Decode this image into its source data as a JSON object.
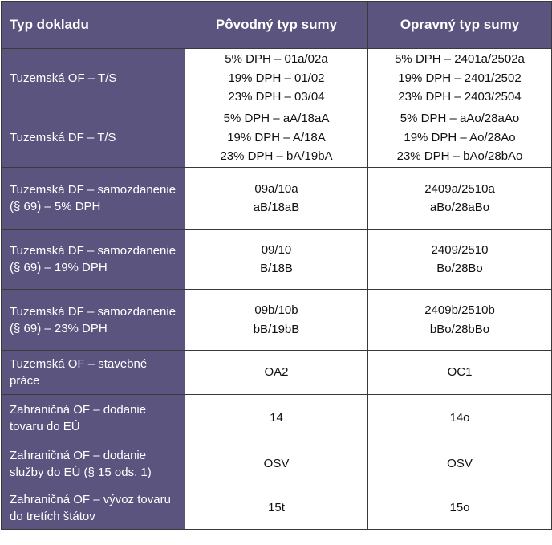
{
  "headers": [
    "Typ dokladu",
    "Pôvodný typ sumy",
    "Opravný typ sumy"
  ],
  "rows": [
    {
      "label": "Tuzemská OF – T/S",
      "original": [
        "5% DPH – 01a/02a",
        "19% DPH – 01/02",
        "23% DPH – 03/04"
      ],
      "corrective": [
        "5% DPH – 2401a/2502a",
        "19% DPH – 2401/2502",
        "23% DPH – 2403/2504"
      ]
    },
    {
      "label": "Tuzemská DF – T/S",
      "original": [
        "5% DPH – aA/18aA",
        "19% DPH – A/18A",
        "23% DPH – bA/19bA"
      ],
      "corrective": [
        "5% DPH – aAo/28aAo",
        "19% DPH – Ao/28Ao",
        "23% DPH – bAo/28bAo"
      ]
    },
    {
      "label": "Tuzemská DF – samozdanenie (§ 69) – 5% DPH",
      "original": [
        "09a/10a",
        "aB/18aB"
      ],
      "corrective": [
        "2409a/2510a",
        "aBo/28aBo"
      ]
    },
    {
      "label": "Tuzemská DF – samozdanenie (§ 69) – 19% DPH",
      "original": [
        "09/10",
        "B/18B"
      ],
      "corrective": [
        "2409/2510",
        "Bo/28Bo"
      ]
    },
    {
      "label": "Tuzemská DF – samozdanenie (§ 69) – 23% DPH",
      "original": [
        "09b/10b",
        "bB/19bB"
      ],
      "corrective": [
        "2409b/2510b",
        "bBo/28bBo"
      ]
    },
    {
      "label": "Tuzemská OF – stavebné práce",
      "original": [
        "OA2"
      ],
      "corrective": [
        "OC1"
      ]
    },
    {
      "label": "Zahraničná OF – dodanie tovaru do EÚ",
      "original": [
        "14"
      ],
      "corrective": [
        "14o"
      ]
    },
    {
      "label": "Zahraničná OF – dodanie služby do EÚ (§ 15 ods. 1)",
      "original": [
        "OSV"
      ],
      "corrective": [
        "OSV"
      ]
    },
    {
      "label": "Zahraničná OF – vývoz tovaru do tretích štátov",
      "original": [
        "15t"
      ],
      "corrective": [
        "15o"
      ]
    }
  ]
}
